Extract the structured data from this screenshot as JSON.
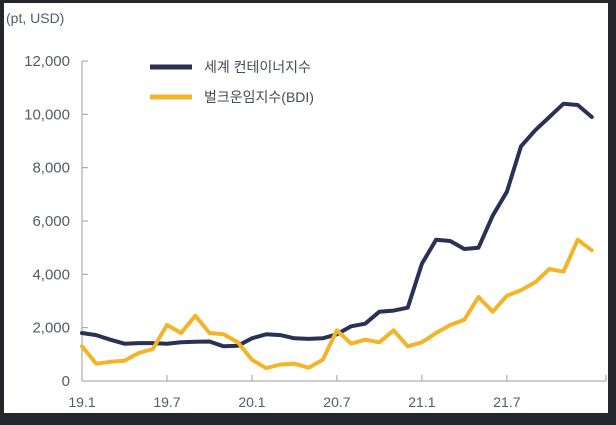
{
  "chart_data": {
    "type": "line",
    "unit_label": "(pt, USD)",
    "title": "",
    "xlabel": "",
    "ylabel": "",
    "ylim": [
      0,
      12000
    ],
    "yticks": [
      0,
      2000,
      4000,
      6000,
      8000,
      10000,
      12000
    ],
    "ytick_labels": [
      "0",
      "2,000",
      "4,000",
      "6,000",
      "8,000",
      "10,000",
      "12,000"
    ],
    "xlim": [
      "2019-01",
      "2022-02"
    ],
    "xticks": [
      {
        "x": "2019-01",
        "label": "19.1"
      },
      {
        "x": "2019-07",
        "label": "19.7"
      },
      {
        "x": "2020-01",
        "label": "20.1"
      },
      {
        "x": "2020-07",
        "label": "20.7"
      },
      {
        "x": "2021-01",
        "label": "21.1"
      },
      {
        "x": "2021-07",
        "label": "21.7"
      }
    ],
    "grid": false,
    "legend": "top-left",
    "series": [
      {
        "name": "세계 컨테이너지수",
        "color": "#2b3154",
        "points": [
          [
            "2019-01",
            1800
          ],
          [
            "2019-02",
            1720
          ],
          [
            "2019-03",
            1550
          ],
          [
            "2019-04",
            1400
          ],
          [
            "2019-05",
            1420
          ],
          [
            "2019-06",
            1420
          ],
          [
            "2019-07",
            1400
          ],
          [
            "2019-08",
            1450
          ],
          [
            "2019-09",
            1470
          ],
          [
            "2019-10",
            1480
          ],
          [
            "2019-11",
            1300
          ],
          [
            "2019-12",
            1320
          ],
          [
            "2020-01",
            1600
          ],
          [
            "2020-02",
            1750
          ],
          [
            "2020-03",
            1720
          ],
          [
            "2020-04",
            1600
          ],
          [
            "2020-05",
            1580
          ],
          [
            "2020-06",
            1600
          ],
          [
            "2020-07",
            1750
          ],
          [
            "2020-08",
            2050
          ],
          [
            "2020-09",
            2150
          ],
          [
            "2020-10",
            2600
          ],
          [
            "2020-11",
            2640
          ],
          [
            "2020-12",
            2750
          ],
          [
            "2021-01",
            4400
          ],
          [
            "2021-02",
            5300
          ],
          [
            "2021-03",
            5250
          ],
          [
            "2021-04",
            4950
          ],
          [
            "2021-05",
            5000
          ],
          [
            "2021-06",
            6200
          ],
          [
            "2021-07",
            7100
          ],
          [
            "2021-08",
            8800
          ],
          [
            "2021-09",
            9400
          ],
          [
            "2021-10",
            9900
          ],
          [
            "2021-11",
            10400
          ],
          [
            "2021-12",
            10350
          ],
          [
            "2022-01",
            9900
          ]
        ]
      },
      {
        "name": "벌크운임지수(BDI)",
        "color": "#f4b428",
        "points": [
          [
            "2019-01",
            1300
          ],
          [
            "2019-02",
            650
          ],
          [
            "2019-03",
            720
          ],
          [
            "2019-04",
            760
          ],
          [
            "2019-05",
            1050
          ],
          [
            "2019-06",
            1200
          ],
          [
            "2019-07",
            2100
          ],
          [
            "2019-08",
            1800
          ],
          [
            "2019-09",
            2450
          ],
          [
            "2019-10",
            1800
          ],
          [
            "2019-11",
            1750
          ],
          [
            "2019-12",
            1450
          ],
          [
            "2020-01",
            800
          ],
          [
            "2020-02",
            480
          ],
          [
            "2020-03",
            620
          ],
          [
            "2020-04",
            650
          ],
          [
            "2020-05",
            500
          ],
          [
            "2020-06",
            800
          ],
          [
            "2020-07",
            1900
          ],
          [
            "2020-08",
            1400
          ],
          [
            "2020-09",
            1550
          ],
          [
            "2020-10",
            1450
          ],
          [
            "2020-11",
            1900
          ],
          [
            "2020-12",
            1300
          ],
          [
            "2021-01",
            1450
          ],
          [
            "2021-02",
            1800
          ],
          [
            "2021-03",
            2100
          ],
          [
            "2021-04",
            2300
          ],
          [
            "2021-05",
            3150
          ],
          [
            "2021-06",
            2600
          ],
          [
            "2021-07",
            3200
          ],
          [
            "2021-08",
            3400
          ],
          [
            "2021-09",
            3700
          ],
          [
            "2021-10",
            4200
          ],
          [
            "2021-11",
            4100
          ],
          [
            "2021-12",
            5300
          ],
          [
            "2022-01",
            4900
          ]
        ]
      }
    ]
  }
}
